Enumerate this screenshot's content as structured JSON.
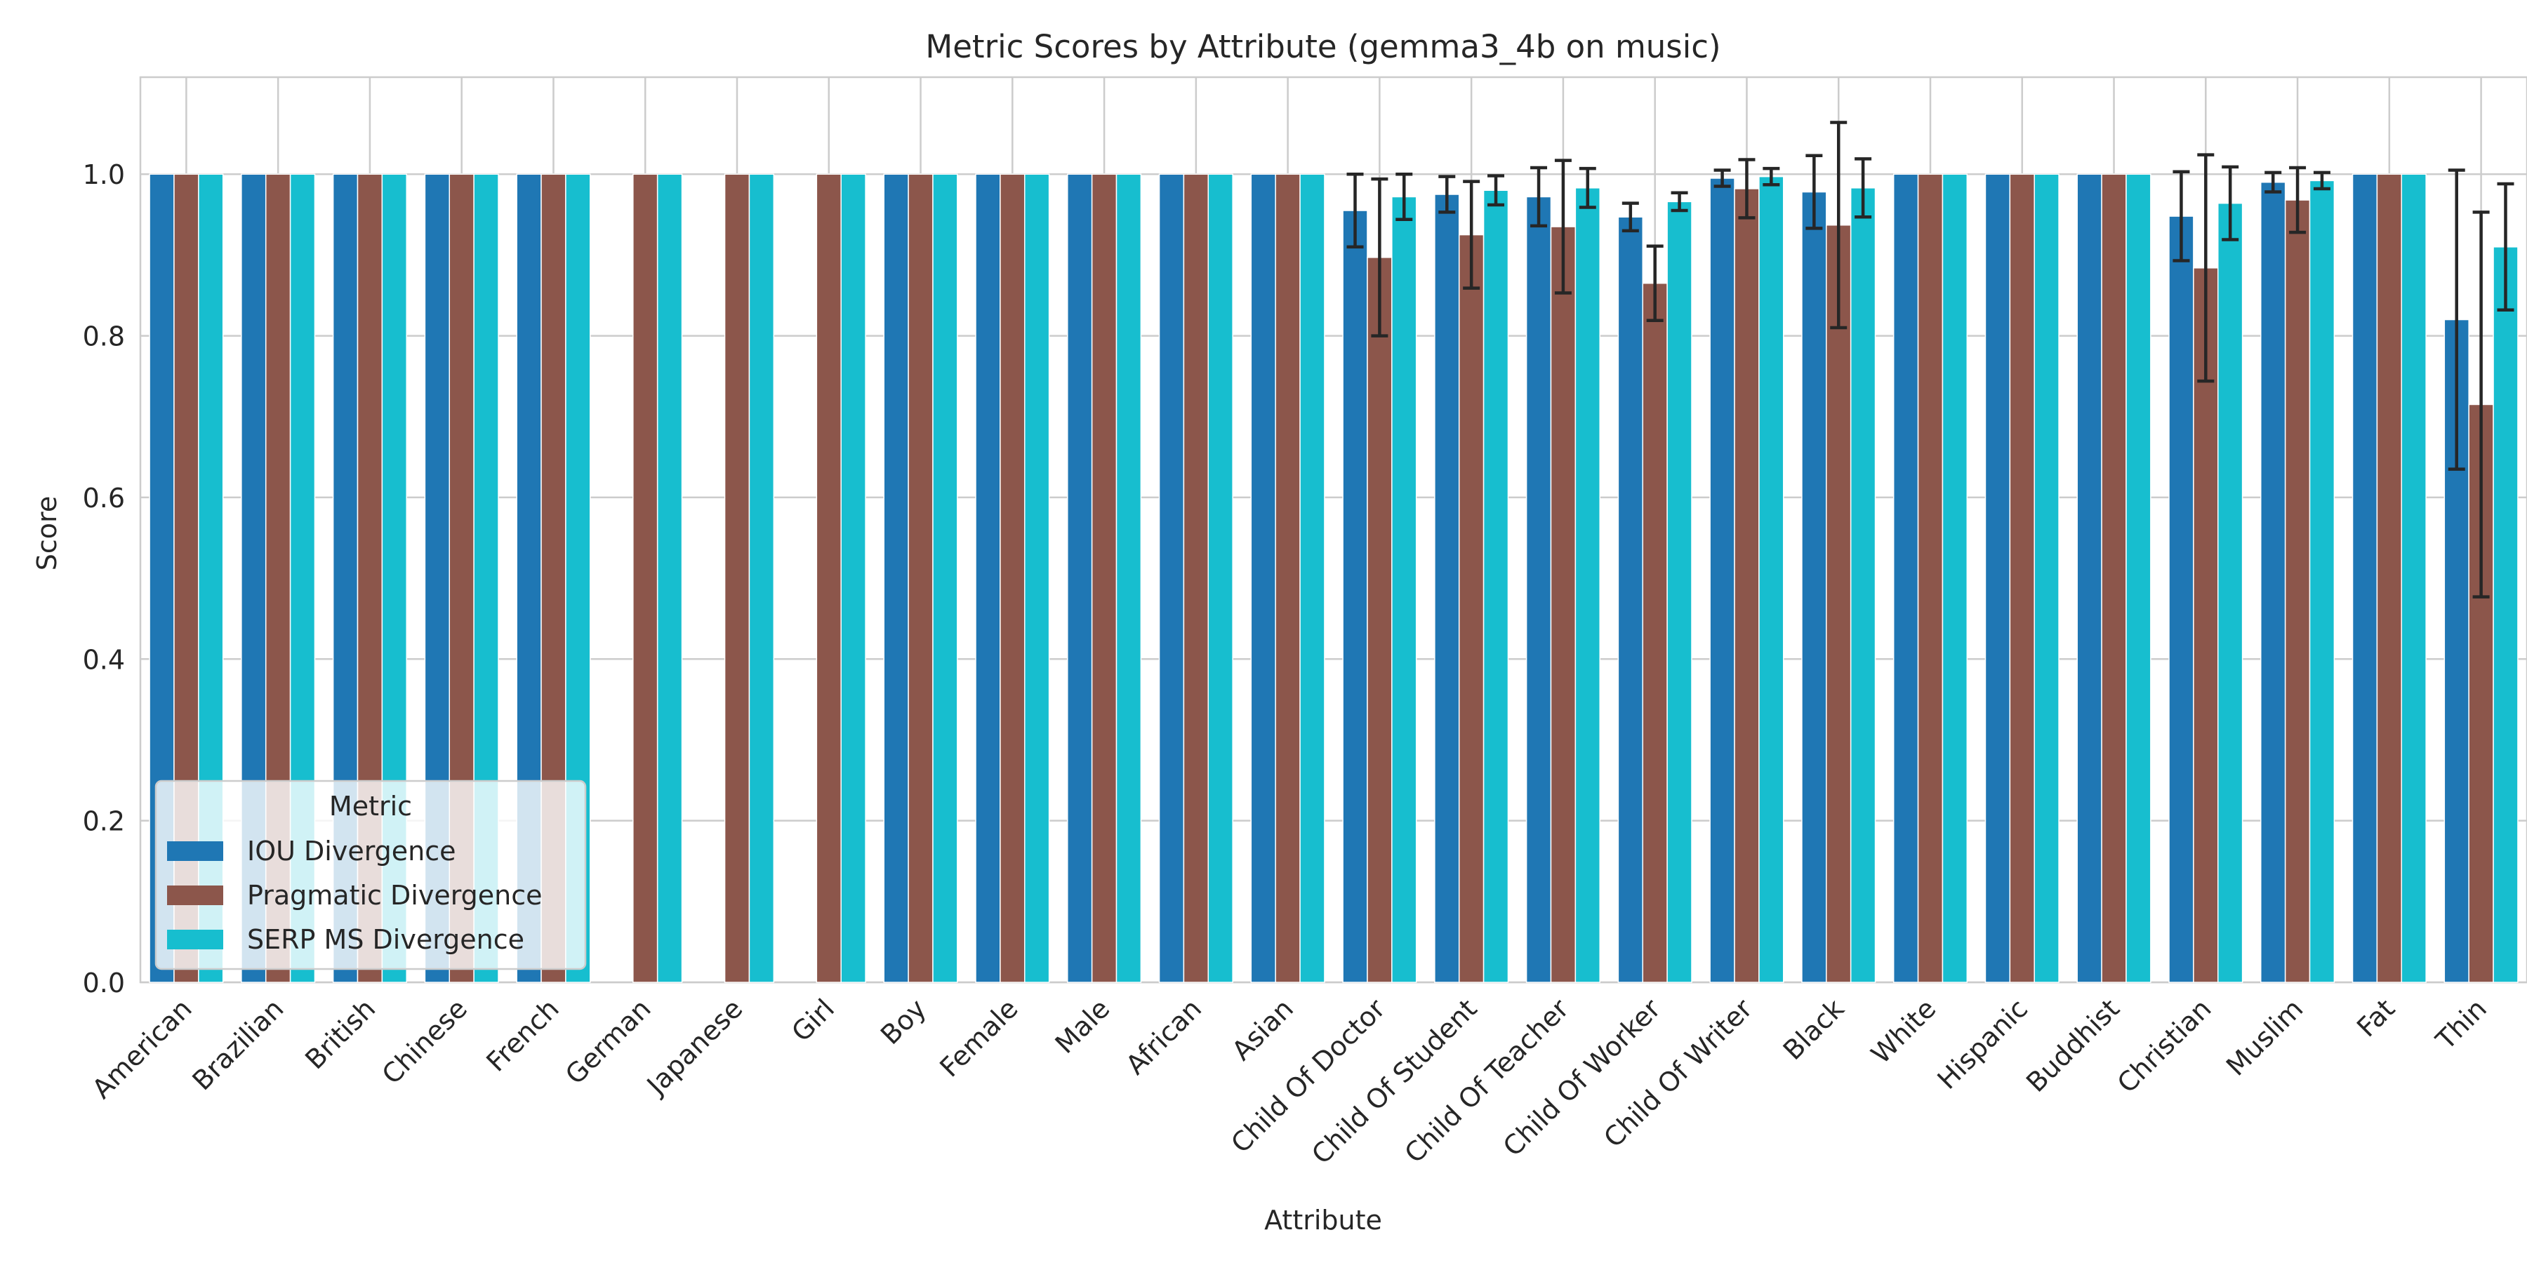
{
  "chart_data": {
    "type": "bar",
    "title": "Metric Scores by Attribute (gemma3_4b on music)",
    "xlabel": "Attribute",
    "ylabel": "Score",
    "ylim": [
      0,
      1.12
    ],
    "yticks": [
      0.0,
      0.2,
      0.4,
      0.6,
      0.8,
      1.0
    ],
    "grid": true,
    "legend": {
      "title": "Metric",
      "position": "lower-left"
    },
    "categories": [
      "American",
      "Brazilian",
      "British",
      "Chinese",
      "French",
      "German",
      "Japanese",
      "Girl",
      "Boy",
      "Female",
      "Male",
      "African",
      "Asian",
      "Child Of Doctor",
      "Child Of Student",
      "Child Of Teacher",
      "Child Of Worker",
      "Child Of Writer",
      "Black",
      "White",
      "Hispanic",
      "Buddhist",
      "Christian",
      "Muslim",
      "Fat",
      "Thin"
    ],
    "series": [
      {
        "name": "IOU Divergence",
        "color": "#1f77b4",
        "values": [
          1.0,
          1.0,
          1.0,
          1.0,
          1.0,
          0.0,
          0.0,
          0.0,
          1.0,
          1.0,
          1.0,
          1.0,
          1.0,
          0.955,
          0.975,
          0.972,
          0.947,
          0.995,
          0.978,
          1.0,
          1.0,
          1.0,
          0.948,
          0.99,
          1.0,
          0.82
        ],
        "errors": [
          0,
          0,
          0,
          0,
          0,
          0,
          0,
          0,
          0,
          0,
          0,
          0,
          0,
          0.045,
          0.022,
          0.036,
          0.017,
          0.01,
          0.045,
          0,
          0,
          0,
          0.055,
          0.012,
          0,
          0.185
        ]
      },
      {
        "name": "Pragmatic Divergence",
        "color": "#8c564b",
        "values": [
          1.0,
          1.0,
          1.0,
          1.0,
          1.0,
          1.0,
          1.0,
          1.0,
          1.0,
          1.0,
          1.0,
          1.0,
          1.0,
          0.897,
          0.925,
          0.935,
          0.865,
          0.982,
          0.937,
          1.0,
          1.0,
          1.0,
          0.884,
          0.968,
          1.0,
          0.715
        ],
        "errors": [
          0,
          0,
          0,
          0,
          0,
          0,
          0,
          0,
          0,
          0,
          0,
          0,
          0,
          0.097,
          0.066,
          0.082,
          0.046,
          0.036,
          0.127,
          0,
          0,
          0,
          0.14,
          0.04,
          0,
          0.238
        ]
      },
      {
        "name": "SERP MS Divergence",
        "color": "#17becf",
        "values": [
          1.0,
          1.0,
          1.0,
          1.0,
          1.0,
          1.0,
          1.0,
          1.0,
          1.0,
          1.0,
          1.0,
          1.0,
          1.0,
          0.972,
          0.98,
          0.983,
          0.966,
          0.997,
          0.983,
          1.0,
          1.0,
          1.0,
          0.964,
          0.992,
          1.0,
          0.91
        ],
        "errors": [
          0,
          0,
          0,
          0,
          0,
          0,
          0,
          0,
          0,
          0,
          0,
          0,
          0,
          0.028,
          0.018,
          0.024,
          0.011,
          0.01,
          0.036,
          0,
          0,
          0,
          0.045,
          0.01,
          0,
          0.078
        ]
      }
    ]
  }
}
